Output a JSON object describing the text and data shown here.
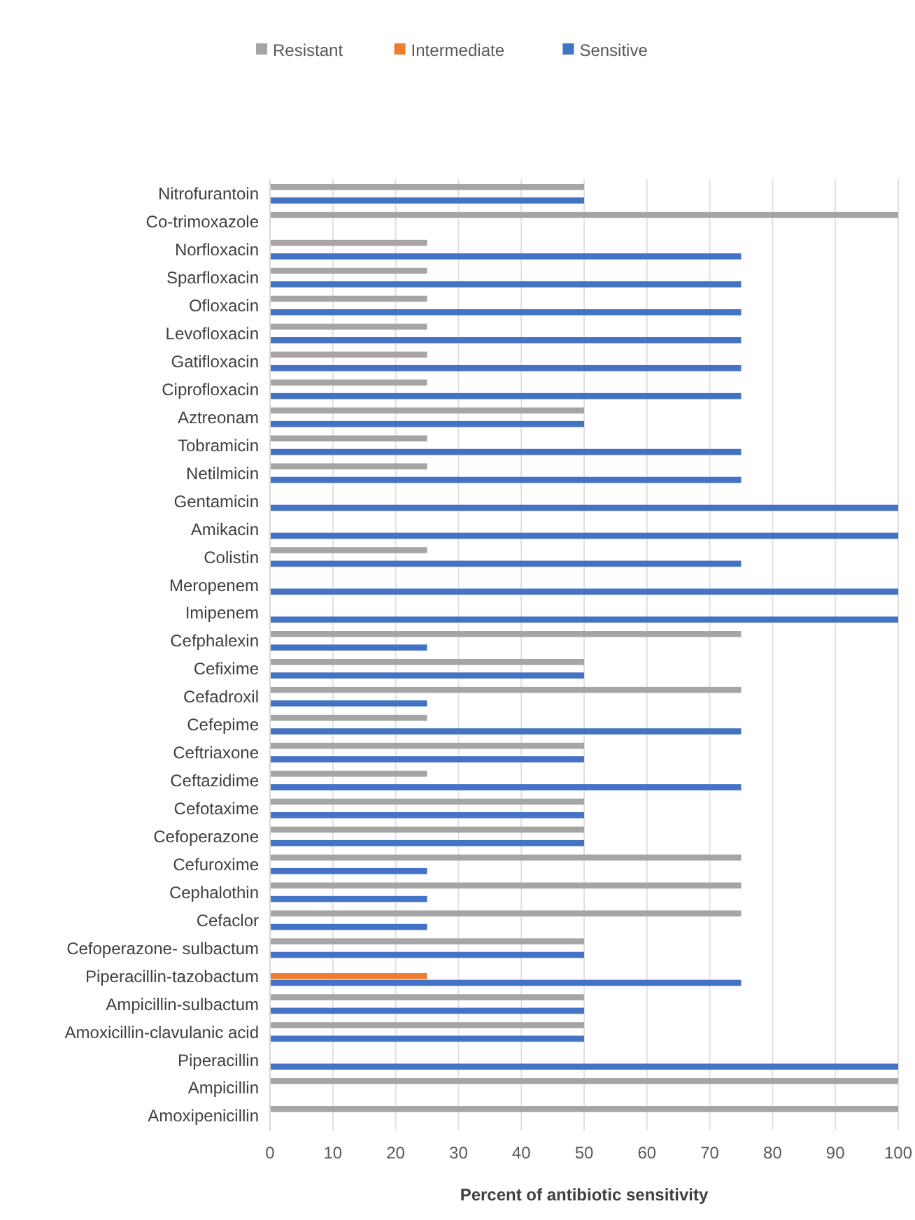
{
  "chart_data": {
    "type": "bar",
    "orientation": "horizontal",
    "xlabel": "Percent of antibiotic sensitivity",
    "categories": [
      "Nitrofurantoin",
      "Co-trimoxazole",
      "Norfloxacin",
      "Sparfloxacin",
      "Ofloxacin",
      "Levofloxacin",
      "Gatifloxacin",
      "Ciprofloxacin",
      "Aztreonam",
      "Tobramicin",
      "Netilmicin",
      "Gentamicin",
      "Amikacin",
      "Colistin",
      "Meropenem",
      "Imipenem",
      "Cefphalexin",
      "Cefixime",
      "Cefadroxil",
      "Cefepime",
      "Ceftriaxone",
      "Ceftazidime",
      "Cefotaxime",
      "Cefoperazone",
      "Cefuroxime",
      "Cephalothin",
      "Cefaclor",
      "Cefoperazone- sulbactum",
      "Piperacillin-tazobactum",
      "Ampicillin-sulbactum",
      "Amoxicillin-clavulanic acid",
      "Piperacillin",
      "Ampicillin",
      "Amoxipenicillin"
    ],
    "series": [
      {
        "name": "Resistant",
        "color": "#a5a5a5",
        "values": [
          50,
          100,
          25,
          25,
          25,
          25,
          25,
          25,
          50,
          25,
          25,
          0,
          0,
          25,
          0,
          0,
          75,
          50,
          75,
          25,
          50,
          25,
          50,
          50,
          75,
          75,
          75,
          50,
          0,
          50,
          50,
          0,
          100,
          100
        ]
      },
      {
        "name": "Intermediate",
        "color": "#ed7d31",
        "values": [
          0,
          0,
          0,
          0,
          0,
          0,
          0,
          0,
          0,
          0,
          0,
          0,
          0,
          0,
          0,
          0,
          0,
          0,
          0,
          0,
          0,
          0,
          0,
          0,
          0,
          0,
          0,
          0,
          25,
          0,
          0,
          0,
          0,
          0
        ]
      },
      {
        "name": "Sensitive",
        "color": "#4472c4",
        "values": [
          50,
          0,
          75,
          75,
          75,
          75,
          75,
          75,
          50,
          75,
          75,
          100,
          100,
          75,
          100,
          100,
          25,
          50,
          25,
          75,
          50,
          75,
          50,
          50,
          25,
          25,
          25,
          50,
          75,
          50,
          50,
          100,
          0,
          0
        ]
      }
    ],
    "xlim": [
      0,
      100
    ],
    "xticks": [
      0,
      10,
      20,
      30,
      40,
      50,
      60,
      70,
      80,
      90,
      100
    ],
    "grid": "x",
    "legend": "top"
  }
}
